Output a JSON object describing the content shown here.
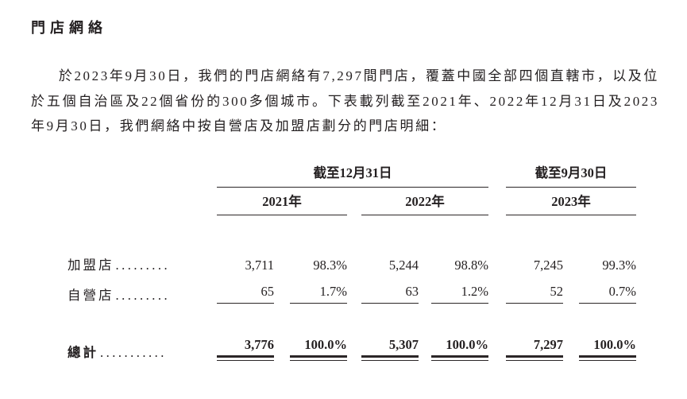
{
  "page": {
    "title": "門店網絡",
    "paragraph": "於2023年9月30日，我們的門店網絡有7,297間門店，覆蓋中國全部四個直轄市，以及位於五個自治區及22個省份的300多個城市。下表載列截至2021年、2022年12月31日及2023年9月30日，我們網絡中按自營店及加盟店劃分的門店明細："
  },
  "table": {
    "col_groups": [
      {
        "label": "截至12月31日"
      },
      {
        "label": "截至9月30日"
      }
    ],
    "years": [
      {
        "label": "2021年"
      },
      {
        "label": "2022年"
      },
      {
        "label": "2023年"
      }
    ],
    "rows": [
      {
        "label": "加盟店",
        "leader": ".........",
        "values": [
          "3,711",
          "98.3%",
          "5,244",
          "98.8%",
          "7,245",
          "99.3%"
        ]
      },
      {
        "label": "自營店",
        "leader": ".........",
        "values": [
          "65",
          "1.7%",
          "63",
          "1.2%",
          "52",
          "0.7%"
        ]
      }
    ],
    "total": {
      "label": "總計",
      "leader": "...........",
      "values": [
        "3,776",
        "100.0%",
        "5,307",
        "100.0%",
        "7,297",
        "100.0%"
      ]
    }
  },
  "colors": {
    "text": "#231f20",
    "rule": "#2b2627",
    "bg": "#ffffff"
  }
}
